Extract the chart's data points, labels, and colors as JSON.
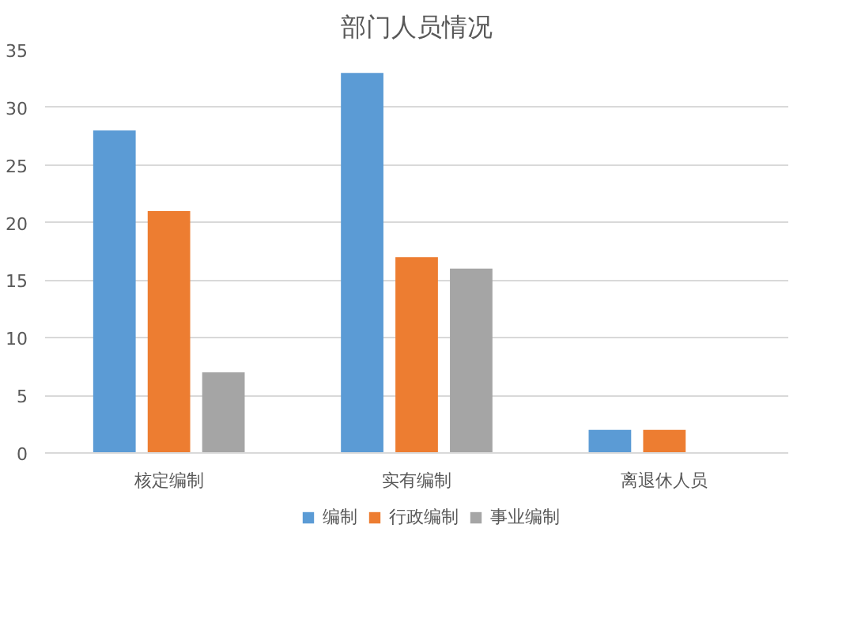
{
  "chart_data": {
    "type": "bar",
    "title": "部门人员情况",
    "categories": [
      "核定编制",
      "实有编制",
      "离退休人员"
    ],
    "series": [
      {
        "name": "编制",
        "color": "#5b9bd5",
        "values": [
          28,
          33,
          2
        ]
      },
      {
        "name": "行政编制",
        "color": "#ed7d31",
        "values": [
          21,
          17,
          2
        ]
      },
      {
        "name": "事业编制",
        "color": "#a5a5a5",
        "values": [
          7,
          16,
          null
        ]
      }
    ],
    "ylim": [
      0,
      35
    ],
    "yticks": [
      0,
      5,
      10,
      15,
      20,
      25,
      30,
      35
    ],
    "grid": "y",
    "legend": "bottom"
  }
}
